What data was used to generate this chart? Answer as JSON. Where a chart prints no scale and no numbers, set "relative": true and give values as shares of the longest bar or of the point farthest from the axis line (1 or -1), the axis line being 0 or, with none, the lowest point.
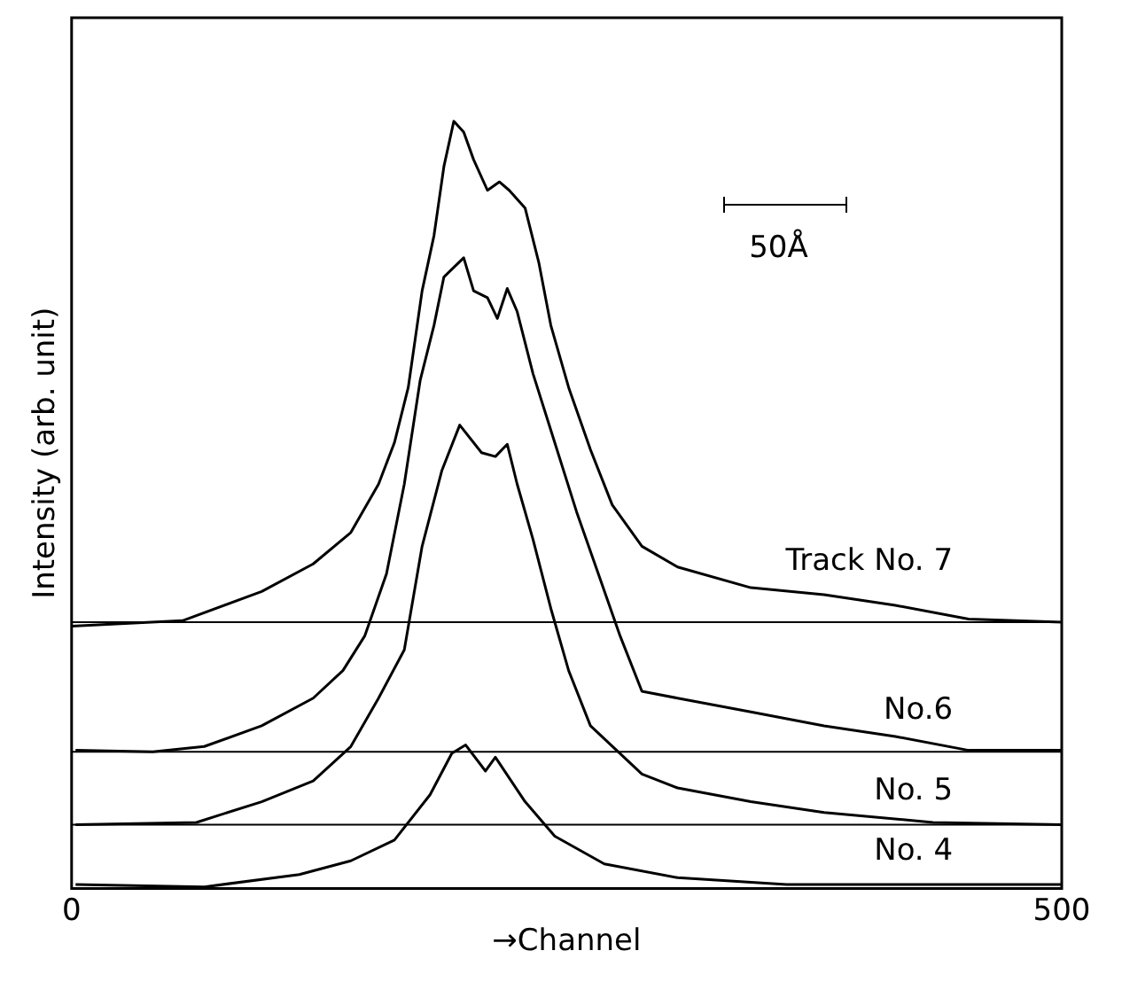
{
  "chart_data": {
    "type": "line",
    "relative": true,
    "xlabel": "→Channel",
    "ylabel": "Intensity (arb. unit)",
    "xlim": [
      0,
      500
    ],
    "xticks": [
      0,
      500
    ],
    "grid": false,
    "legend": false,
    "marker": "none",
    "line_style": "solid",
    "annotations": [
      "50Å"
    ],
    "ref_lines": [
      {
        "axis": "y",
        "value": 0.347,
        "color": "#000000"
      },
      {
        "axis": "y",
        "value": 0.178,
        "color": "#000000"
      },
      {
        "axis": "y",
        "value": 0.083,
        "color": "#000000"
      }
    ],
    "series": [
      {
        "name": "Track No. 7",
        "color": "#000000",
        "x": [
          0,
          56,
          96,
          122,
          141,
          155,
          163,
          170,
          177,
          183,
          188,
          193,
          198,
          203,
          210,
          216,
          221,
          229,
          236,
          242,
          251,
          262,
          273,
          288,
          306,
          343,
          380,
          416,
          453,
          500
        ],
        "values": [
          0.342,
          0.349,
          0.387,
          0.423,
          0.464,
          0.527,
          0.581,
          0.653,
          0.779,
          0.851,
          0.941,
          1,
          0.986,
          0.95,
          0.91,
          0.921,
          0.91,
          0.887,
          0.815,
          0.734,
          0.653,
          0.572,
          0.5,
          0.446,
          0.419,
          0.392,
          0.383,
          0.369,
          0.351,
          0.347
        ]
      },
      {
        "name": "No.6",
        "color": "#000000",
        "x": [
          2,
          41,
          67,
          96,
          122,
          137,
          148,
          159,
          168,
          176,
          183,
          188,
          198,
          203,
          210,
          215,
          220,
          225,
          233,
          244,
          255,
          266,
          277,
          288,
          306,
          343,
          380,
          416,
          453,
          500
        ],
        "values": [
          0.18,
          0.178,
          0.185,
          0.212,
          0.248,
          0.284,
          0.329,
          0.41,
          0.527,
          0.662,
          0.734,
          0.797,
          0.822,
          0.779,
          0.77,
          0.743,
          0.782,
          0.752,
          0.671,
          0.581,
          0.491,
          0.41,
          0.329,
          0.257,
          0.248,
          0.23,
          0.212,
          0.198,
          0.18,
          0.18
        ]
      },
      {
        "name": "No. 5",
        "color": "#000000",
        "x": [
          2,
          63,
          96,
          122,
          141,
          155,
          168,
          177,
          187,
          196,
          207,
          214,
          220,
          225,
          233,
          242,
          251,
          262,
          288,
          306,
          343,
          380,
          435,
          500
        ],
        "values": [
          0.083,
          0.086,
          0.113,
          0.14,
          0.185,
          0.248,
          0.311,
          0.446,
          0.545,
          0.604,
          0.568,
          0.563,
          0.579,
          0.527,
          0.455,
          0.365,
          0.284,
          0.212,
          0.149,
          0.131,
          0.113,
          0.099,
          0.086,
          0.083
        ]
      },
      {
        "name": "No. 4",
        "color": "#000000",
        "x": [
          2,
          67,
          115,
          141,
          163,
          181,
          192,
          199,
          209,
          214,
          229,
          244,
          269,
          306,
          361,
          500
        ],
        "values": [
          0.005,
          0.002,
          0.018,
          0.036,
          0.063,
          0.122,
          0.176,
          0.187,
          0.153,
          0.171,
          0.113,
          0.068,
          0.032,
          0.014,
          0.005,
          0.005
        ]
      }
    ]
  }
}
